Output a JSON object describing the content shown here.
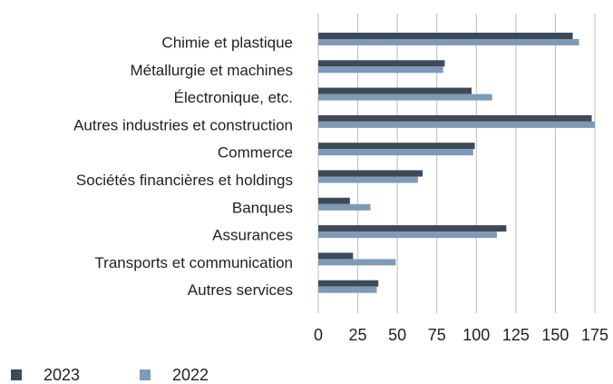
{
  "chart_data": {
    "type": "hbar",
    "categories": [
      "Chimie et plastique",
      "Métallurgie et machines",
      "Électronique, etc.",
      "Autres industries et construction",
      "Commerce",
      "Sociétés financières et holdings",
      "Banques",
      "Assurances",
      "Transports et communication",
      "Autres services"
    ],
    "series": [
      {
        "name": "2023",
        "color": "#3e4a59",
        "values": [
          161,
          80,
          97,
          173,
          99,
          66,
          20,
          119,
          22,
          38
        ]
      },
      {
        "name": "2022",
        "color": "#7f9ab6",
        "values": [
          165,
          79,
          110,
          175,
          98,
          63,
          33,
          113,
          49,
          37
        ]
      }
    ],
    "xlim": [
      0,
      175
    ],
    "xticks": [
      0,
      25,
      50,
      75,
      100,
      125,
      150,
      175
    ],
    "grid": true,
    "legend": "bottom"
  }
}
